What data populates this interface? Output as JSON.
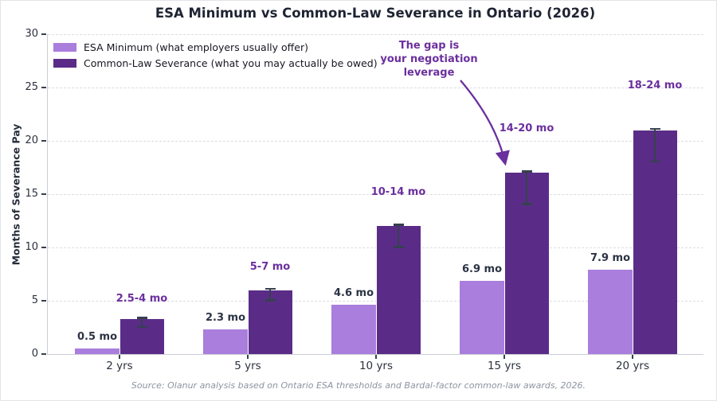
{
  "title": "ESA Minimum vs Common-Law Severance in Ontario (2026)",
  "ylabel": "Months of Severance Pay",
  "source": "Source: Olanur analysis based on Ontario ESA thresholds and Bardal-factor common-law awards, 2026.",
  "legend": [
    {
      "label": "ESA Minimum (what employers usually offer)",
      "color": "#a97edc"
    },
    {
      "label": "Common-Law Severance (what you may actually be owed)",
      "color": "#5a2c88"
    }
  ],
  "annotation": {
    "lines": [
      "The gap is",
      "your negotiation",
      "leverage"
    ],
    "color": "#6b2f9e"
  },
  "colors": {
    "esa_bar": "#a97edc",
    "common_law_bar": "#5a2c88",
    "purple_text": "#6b2f9e",
    "esa_label_text": "#2c3344",
    "error_bar": "#37404f",
    "grid": "#dcdde2",
    "spine": "#c9cdd6"
  },
  "chart_data": {
    "type": "bar",
    "categories": [
      "2 yrs",
      "5 yrs",
      "10 yrs",
      "15 yrs",
      "20 yrs"
    ],
    "series": [
      {
        "name": "ESA Minimum (what employers usually offer)",
        "values": [
          0.5,
          2.3,
          4.6,
          6.9,
          7.9
        ],
        "labels": [
          "0.5 mo",
          "2.3 mo",
          "4.6 mo",
          "6.9 mo",
          "7.9 mo"
        ],
        "color": "#a97edc"
      },
      {
        "name": "Common-Law Severance (what you may actually be owed)",
        "values": [
          3.25,
          6,
          12,
          17,
          21
        ],
        "labels": [
          "2.5-4 mo",
          "5-7 mo",
          "10-14 mo",
          "14-20 mo",
          "18-24 mo"
        ],
        "ranges": [
          [
            2.5,
            4
          ],
          [
            5,
            7
          ],
          [
            10,
            14
          ],
          [
            14,
            20
          ],
          [
            18,
            24
          ]
        ],
        "color": "#5a2c88"
      }
    ],
    "title": "ESA Minimum vs Common-Law Severance in Ontario (2026)",
    "xlabel": "",
    "ylabel": "Months of Severance Pay",
    "ylim": [
      0,
      30
    ],
    "yticks": [
      0,
      5,
      10,
      15,
      20,
      25,
      30
    ],
    "grid": "horizontal-dashed",
    "legend_position": "upper-left",
    "annotation": "The gap is your negotiation leverage (arrow pointing to 15 yrs common-law bar)"
  }
}
